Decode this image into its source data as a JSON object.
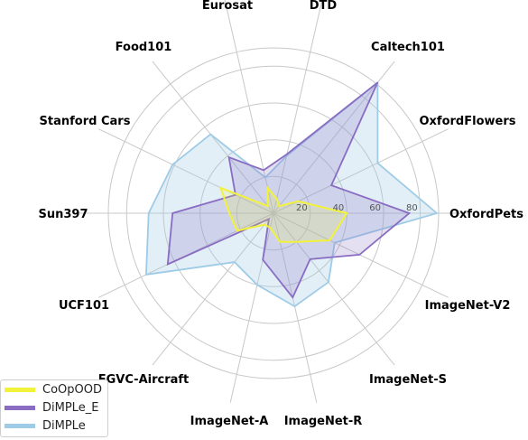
{
  "chart_data": {
    "type": "radar",
    "axes": [
      "OxfordPets",
      "OxfordFlowers",
      "Caltech101",
      "DTD",
      "Eurosat",
      "Food101",
      "Stanford Cars",
      "Sun397",
      "UCF101",
      "FGVC-Aircraft",
      "ImageNet-A",
      "ImageNet-R",
      "ImageNet-S",
      "ImageNet-V2"
    ],
    "radial_ticks": [
      "20",
      "40",
      "60",
      "80"
    ],
    "rmax": 90,
    "grid": true,
    "legend_position": "bottom-left",
    "series": [
      {
        "name": "CoOpOOD",
        "color": "#f2f23a",
        "values": [
          40,
          15,
          5,
          8,
          14,
          5,
          32,
          24,
          22,
          8,
          8,
          16,
          20,
          34
        ]
      },
      {
        "name": "DiMPLe_E",
        "color": "#8a6cc2",
        "values": [
          74,
          35,
          91,
          33,
          24,
          39,
          23,
          55,
          64,
          4,
          26,
          47,
          32,
          52
        ]
      },
      {
        "name": "DiMPLe",
        "color": "#9ecbe6",
        "values": [
          89,
          63,
          91,
          32,
          20,
          55,
          61,
          68,
          77,
          34,
          40,
          52,
          48,
          37
        ]
      }
    ]
  }
}
